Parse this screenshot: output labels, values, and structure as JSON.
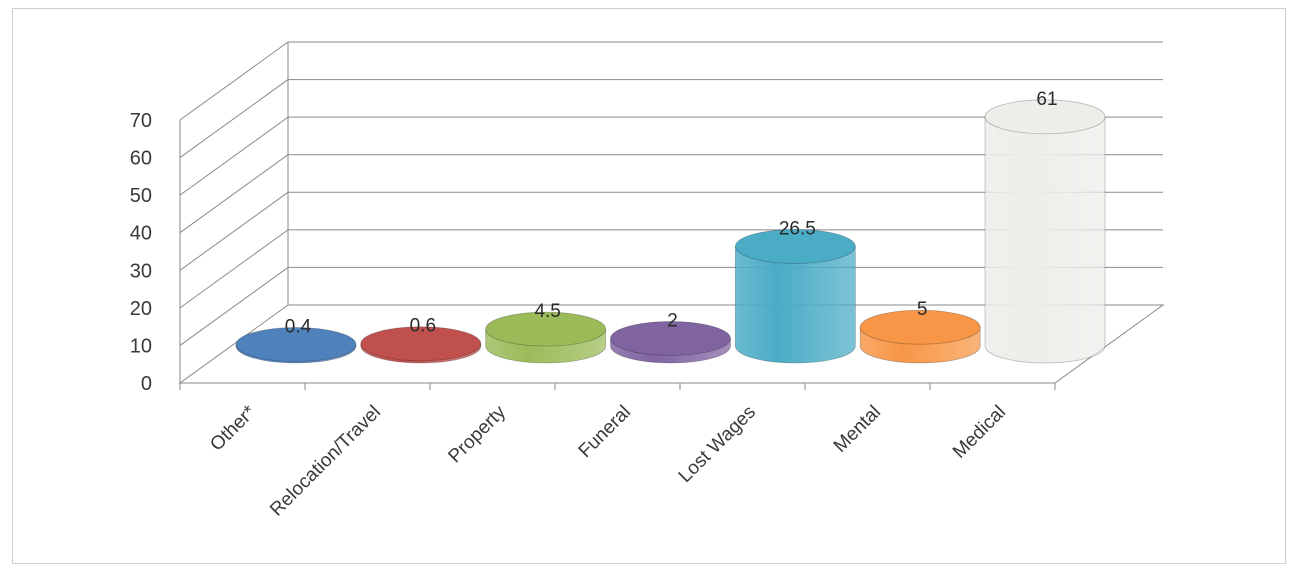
{
  "chart_data": {
    "type": "bar",
    "style": "3d-cylinder",
    "categories": [
      "Other*",
      "Relocation/Travel",
      "Property",
      "Funeral",
      "Lost Wages",
      "Mental",
      "Medical"
    ],
    "values": [
      0.4,
      0.6,
      4.5,
      2,
      26.5,
      5,
      61
    ],
    "data_labels": [
      "0.4",
      "0.6",
      "4.5",
      "2",
      "26.5",
      "5",
      "61"
    ],
    "colors": [
      "#4f81bd",
      "#c0504d",
      "#9bbb59",
      "#8064a2",
      "#4bacc6",
      "#f79646",
      "#ededea"
    ],
    "title": "",
    "xlabel": "",
    "ylabel": "",
    "ylim": [
      0,
      70
    ],
    "yticks": [
      "0",
      "10",
      "20",
      "30",
      "40",
      "50",
      "60",
      "70"
    ],
    "grid": true,
    "legend": "none"
  }
}
